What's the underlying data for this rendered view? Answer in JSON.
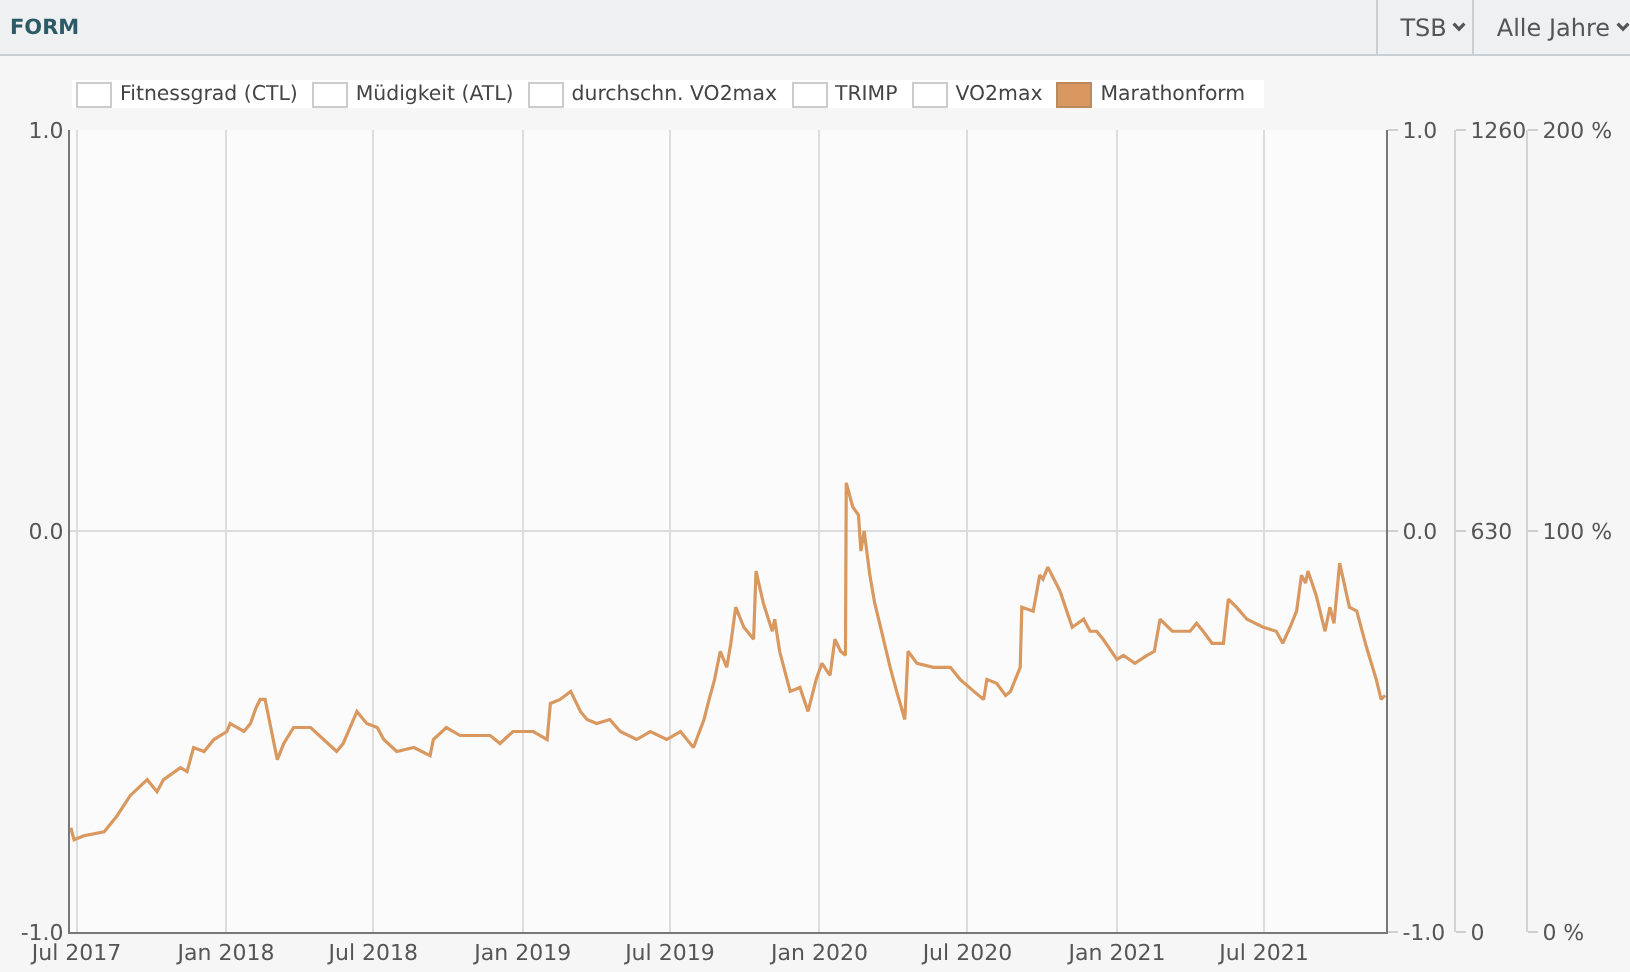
{
  "chart_data": {
    "type": "line",
    "title": "FORM",
    "annotations": [
      "TSB",
      "Alle Jahre"
    ],
    "x": [
      "2017-06-24",
      "2017-06-28",
      "2017-07-10",
      "2017-08-04",
      "2017-08-20",
      "2017-09-05",
      "2017-09-26",
      "2017-10-08",
      "2017-10-16",
      "2017-11-06",
      "2017-11-14",
      "2017-11-22",
      "2017-12-05",
      "2017-12-17",
      "2018-01-02",
      "2018-01-06",
      "2018-01-23",
      "2018-01-31",
      "2018-02-07",
      "2018-02-12",
      "2018-02-18",
      "2018-02-25",
      "2018-03-05",
      "2018-03-13",
      "2018-03-25",
      "2018-04-15",
      "2018-05-01",
      "2018-05-17",
      "2018-05-25",
      "2018-06-11",
      "2018-06-23",
      "2018-07-06",
      "2018-07-14",
      "2018-07-30",
      "2018-08-20",
      "2018-09-09",
      "2018-09-13",
      "2018-09-29",
      "2018-10-16",
      "2018-11-22",
      "2018-12-04",
      "2018-12-20",
      "2019-01-02",
      "2019-01-14",
      "2019-01-31",
      "2019-02-04",
      "2019-02-16",
      "2019-03-01",
      "2019-03-13",
      "2019-03-21",
      "2019-04-02",
      "2019-04-18",
      "2019-05-01",
      "2019-05-21",
      "2019-06-07",
      "2019-06-27",
      "2019-07-14",
      "2019-07-30",
      "2019-08-12",
      "2019-08-17",
      "2019-08-25",
      "2019-09-01",
      "2019-09-09",
      "2019-09-14",
      "2019-09-20",
      "2019-09-30",
      "2019-10-12",
      "2019-10-15",
      "2019-10-24",
      "2019-11-04",
      "2019-11-07",
      "2019-11-13",
      "2019-11-26",
      "2019-12-08",
      "2019-12-18",
      "2019-12-28",
      "2020-01-04",
      "2020-01-14",
      "2020-01-20",
      "2020-01-27",
      "2020-02-02",
      "2020-02-03",
      "2020-02-11",
      "2020-02-18",
      "2020-02-21",
      "2020-02-25",
      "2020-03-03",
      "2020-03-09",
      "2020-03-15",
      "2020-03-28",
      "2020-04-05",
      "2020-04-15",
      "2020-04-19",
      "2020-04-30",
      "2020-05-20",
      "2020-06-10",
      "2020-06-22",
      "2020-07-09",
      "2020-07-21",
      "2020-07-25",
      "2020-08-06",
      "2020-08-17",
      "2020-08-23",
      "2020-09-04",
      "2020-09-06",
      "2020-09-20",
      "2020-09-28",
      "2020-10-02",
      "2020-10-08",
      "2020-10-23",
      "2020-11-07",
      "2020-11-21",
      "2020-11-29",
      "2020-12-07",
      "2020-12-15",
      "2021-01-01",
      "2021-01-09",
      "2021-01-23",
      "2021-02-07",
      "2021-02-16",
      "2021-02-23",
      "2021-03-10",
      "2021-04-01",
      "2021-04-09",
      "2021-04-17",
      "2021-04-28",
      "2021-05-12",
      "2021-05-18",
      "2021-05-28",
      "2021-06-10",
      "2021-06-30",
      "2021-07-16",
      "2021-07-24",
      "2021-08-02",
      "2021-08-10",
      "2021-08-16",
      "2021-08-21",
      "2021-08-24",
      "2021-09-03",
      "2021-09-14",
      "2021-09-20",
      "2021-09-25",
      "2021-10-02",
      "2021-10-14",
      "2021-10-23",
      "2021-11-04",
      "2021-11-16",
      "2021-11-22",
      "2021-11-27"
    ],
    "series": [
      {
        "name": "Fitnessgrad (CTL)",
        "values": [
          null,
          null,
          null,
          null,
          null,
          null,
          null,
          null,
          null,
          null,
          null,
          null,
          null,
          null,
          null,
          null,
          null,
          null,
          null,
          null,
          null,
          null,
          null,
          null,
          null,
          null,
          null,
          null,
          null,
          null,
          null,
          null,
          null,
          null,
          null,
          null,
          null,
          null,
          null,
          null,
          null,
          null,
          null,
          null,
          null,
          null,
          null,
          null,
          null,
          null,
          null,
          null,
          null,
          null,
          null,
          null,
          null,
          null,
          null,
          null,
          null,
          null,
          null,
          null,
          null,
          null,
          null,
          null,
          null,
          null,
          null,
          null,
          null,
          null,
          null,
          null,
          null,
          null,
          null,
          null,
          null,
          null,
          null,
          null,
          null,
          null,
          null,
          null,
          null,
          null,
          null,
          null,
          null,
          null,
          null,
          null,
          null,
          null,
          null,
          null,
          null,
          null,
          null,
          null,
          null,
          null,
          null,
          null,
          null,
          null,
          null,
          null,
          null,
          null,
          null,
          null,
          null,
          null,
          null,
          null,
          null,
          null,
          null,
          null,
          null,
          null,
          null,
          null,
          null,
          null,
          null,
          null,
          null,
          null,
          null,
          null,
          null,
          null,
          null,
          null,
          null,
          null,
          null,
          null,
          null,
          null,
          null,
          null,
          null
        ]
      },
      {
        "name": "Müdigkeit (ATL)",
        "values": [
          null,
          null,
          null,
          null,
          null,
          null,
          null,
          null,
          null,
          null,
          null,
          null,
          null,
          null,
          null,
          null,
          null,
          null,
          null,
          null,
          null,
          null,
          null,
          null,
          null,
          null,
          null,
          null,
          null,
          null,
          null,
          null,
          null,
          null,
          null,
          null,
          null,
          null,
          null,
          null,
          null,
          null,
          null,
          null,
          null,
          null,
          null,
          null,
          null,
          null,
          null,
          null,
          null,
          null,
          null,
          null,
          null,
          null,
          null,
          null,
          null,
          null,
          null,
          null,
          null,
          null,
          null,
          null,
          null,
          null,
          null,
          null,
          null,
          null,
          null,
          null,
          null,
          null,
          null,
          null,
          null,
          null,
          null,
          null,
          null,
          null,
          null,
          null,
          null,
          null,
          null,
          null,
          null,
          null,
          null,
          null,
          null,
          null,
          null,
          null,
          null,
          null,
          null,
          null,
          null,
          null,
          null,
          null,
          null,
          null,
          null,
          null,
          null,
          null,
          null,
          null,
          null,
          null,
          null,
          null,
          null,
          null,
          null,
          null,
          null,
          null,
          null,
          null,
          null,
          null,
          null,
          null,
          null,
          null,
          null,
          null,
          null,
          null,
          null,
          null,
          null,
          null,
          null,
          null,
          null,
          null,
          null,
          null,
          null
        ]
      },
      {
        "name": "durchschn. VO2max",
        "values": [
          null,
          null,
          null,
          null,
          null,
          null,
          null,
          null,
          null,
          null,
          null,
          null,
          null,
          null,
          null,
          null,
          null,
          null,
          null,
          null,
          null,
          null,
          null,
          null,
          null,
          null,
          null,
          null,
          null,
          null,
          null,
          null,
          null,
          null,
          null,
          null,
          null,
          null,
          null,
          null,
          null,
          null,
          null,
          null,
          null,
          null,
          null,
          null,
          null,
          null,
          null,
          null,
          null,
          null,
          null,
          null,
          null,
          null,
          null,
          null,
          null,
          null,
          null,
          null,
          null,
          null,
          null,
          null,
          null,
          null,
          null,
          null,
          null,
          null,
          null,
          null,
          null,
          null,
          null,
          null,
          null,
          null,
          null,
          null,
          null,
          null,
          null,
          null,
          null,
          null,
          null,
          null,
          null,
          null,
          null,
          null,
          null,
          null,
          null,
          null,
          null,
          null,
          null,
          null,
          null,
          null,
          null,
          null,
          null,
          null,
          null,
          null,
          null,
          null,
          null,
          null,
          null,
          null,
          null,
          null,
          null,
          null,
          null,
          null,
          null,
          null,
          null,
          null,
          null,
          null,
          null,
          null,
          null,
          null,
          null,
          null,
          null,
          null,
          null,
          null,
          null,
          null,
          null,
          null,
          null,
          null,
          null,
          null,
          null
        ]
      },
      {
        "name": "TRIMP",
        "values": [
          null,
          null,
          null,
          null,
          null,
          null,
          null,
          null,
          null,
          null,
          null,
          null,
          null,
          null,
          null,
          null,
          null,
          null,
          null,
          null,
          null,
          null,
          null,
          null,
          null,
          null,
          null,
          null,
          null,
          null,
          null,
          null,
          null,
          null,
          null,
          null,
          null,
          null,
          null,
          null,
          null,
          null,
          null,
          null,
          null,
          null,
          null,
          null,
          null,
          null,
          null,
          null,
          null,
          null,
          null,
          null,
          null,
          null,
          null,
          null,
          null,
          null,
          null,
          null,
          null,
          null,
          null,
          null,
          null,
          null,
          null,
          null,
          null,
          null,
          null,
          null,
          null,
          null,
          null,
          null,
          null,
          null,
          null,
          null,
          null,
          null,
          null,
          null,
          null,
          null,
          null,
          null,
          null,
          null,
          null,
          null,
          null,
          null,
          null,
          null,
          null,
          null,
          null,
          null,
          null,
          null,
          null,
          null,
          null,
          null,
          null,
          null,
          null,
          null,
          null,
          null,
          null,
          null,
          null,
          null,
          null,
          null,
          null,
          null,
          null,
          null,
          null,
          null,
          null,
          null,
          null,
          null,
          null,
          null,
          null,
          null,
          null,
          null,
          null,
          null,
          null,
          null,
          null,
          null,
          null,
          null,
          null,
          null,
          null
        ]
      },
      {
        "name": "VO2max",
        "values": [
          null,
          null,
          null,
          null,
          null,
          null,
          null,
          null,
          null,
          null,
          null,
          null,
          null,
          null,
          null,
          null,
          null,
          null,
          null,
          null,
          null,
          null,
          null,
          null,
          null,
          null,
          null,
          null,
          null,
          null,
          null,
          null,
          null,
          null,
          null,
          null,
          null,
          null,
          null,
          null,
          null,
          null,
          null,
          null,
          null,
          null,
          null,
          null,
          null,
          null,
          null,
          null,
          null,
          null,
          null,
          null,
          null,
          null,
          null,
          null,
          null,
          null,
          null,
          null,
          null,
          null,
          null,
          null,
          null,
          null,
          null,
          null,
          null,
          null,
          null,
          null,
          null,
          null,
          null,
          null,
          null,
          null,
          null,
          null,
          null,
          null,
          null,
          null,
          null,
          null,
          null,
          null,
          null,
          null,
          null,
          null,
          null,
          null,
          null,
          null,
          null,
          null,
          null,
          null,
          null,
          null,
          null,
          null,
          null,
          null,
          null,
          null,
          null,
          null,
          null,
          null,
          null,
          null,
          null,
          null,
          null,
          null,
          null,
          null,
          null,
          null,
          null,
          null,
          null,
          null,
          null,
          null,
          null,
          null,
          null,
          null,
          null,
          null,
          null,
          null,
          null,
          null,
          null,
          null,
          null,
          null,
          null,
          null,
          null
        ]
      },
      {
        "name": "Marathonform",
        "color": "#d9985f",
        "axis": "y3",
        "values": [
          26,
          23,
          24,
          25,
          29,
          34,
          38,
          35,
          38,
          41,
          40,
          46,
          45,
          48,
          50,
          52,
          50,
          52,
          56,
          58,
          58,
          51,
          43,
          47,
          51,
          51,
          48,
          45,
          47,
          55,
          52,
          51,
          48,
          45,
          46,
          44,
          48,
          51,
          49,
          49,
          47,
          50,
          50,
          50,
          48,
          57,
          58,
          60,
          55,
          53,
          52,
          53,
          50,
          48,
          50,
          48,
          50,
          46,
          53,
          57,
          63,
          70,
          66,
          72,
          81,
          76,
          73,
          90,
          82,
          75,
          78,
          70,
          60,
          61,
          55,
          63,
          67,
          64,
          73,
          70,
          69,
          112,
          106,
          104,
          95,
          100,
          89,
          82,
          77,
          66,
          60,
          53,
          70,
          67,
          66,
          66,
          63,
          60,
          58,
          63,
          62,
          59,
          60,
          66,
          81,
          80,
          89,
          88,
          91,
          85,
          76,
          78,
          75,
          75,
          73,
          68,
          69,
          67,
          69,
          70,
          78,
          75,
          75,
          77,
          75,
          72,
          72,
          83,
          81,
          78,
          76,
          75,
          72,
          76,
          80,
          89,
          87,
          90,
          84,
          75,
          81,
          77,
          92,
          81,
          80,
          71,
          63,
          58,
          59
        ]
      }
    ],
    "xlim": [
      "2017-06-23",
      "2021-11-28"
    ],
    "xticks": [
      {
        "value": "2017-07-01",
        "label": "Jul 2017"
      },
      {
        "value": "2018-01-01",
        "label": "Jan 2018"
      },
      {
        "value": "2018-07-01",
        "label": "Jul 2018"
      },
      {
        "value": "2019-01-01",
        "label": "Jan 2019"
      },
      {
        "value": "2019-07-01",
        "label": "Jul 2019"
      },
      {
        "value": "2020-01-01",
        "label": "Jan 2020"
      },
      {
        "value": "2020-07-01",
        "label": "Jul 2020"
      },
      {
        "value": "2021-01-01",
        "label": "Jan 2021"
      },
      {
        "value": "2021-07-01",
        "label": "Jul 2021"
      }
    ],
    "ylim": [
      -1,
      1
    ],
    "yticks": [
      {
        "value": -1,
        "label": "-1.0"
      },
      {
        "value": 0,
        "label": "0.0"
      },
      {
        "value": 1,
        "label": "1.0"
      }
    ],
    "y2lim": [
      0,
      1260
    ],
    "y2ticks": [
      0,
      630,
      1260
    ],
    "y3lim": [
      0,
      200
    ],
    "y3ticks": [
      {
        "value": 0,
        "label": "0 %"
      },
      {
        "value": 100,
        "label": "100 %"
      },
      {
        "value": 200,
        "label": "200 %"
      }
    ],
    "grid": true,
    "legend": "top"
  }
}
